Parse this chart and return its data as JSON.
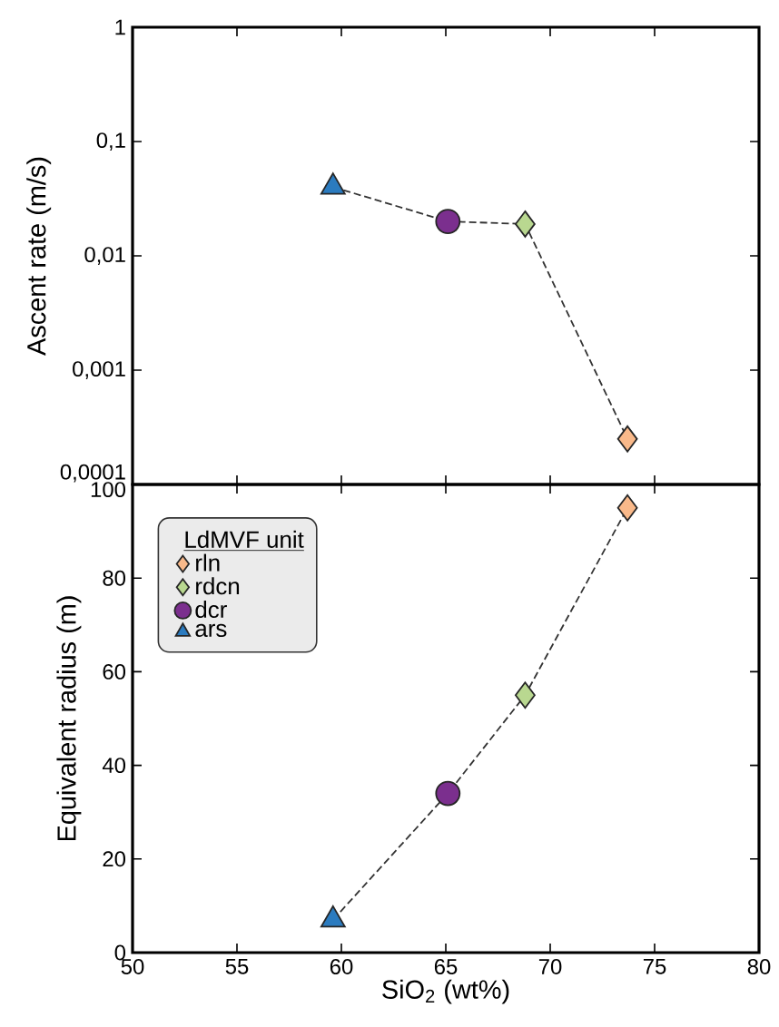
{
  "chart_data": [
    {
      "type": "scatter",
      "ylabel": "Ascent rate (m/s)",
      "log": "y",
      "tick_labels": "y",
      "legend": false,
      "xlim": [
        50,
        80
      ],
      "xticks": [
        50,
        55,
        60,
        65,
        70,
        75,
        80
      ],
      "ylim": [
        0.0001,
        1
      ],
      "yticks": [
        {
          "value": 0.0001,
          "label": "0,0001"
        },
        {
          "value": 0.001,
          "label": "0,001"
        },
        {
          "value": 0.01,
          "label": "0,01"
        },
        {
          "value": 0.1,
          "label": "0,1"
        },
        1
      ],
      "series": [
        {
          "type": "line",
          "line_style": "dashed",
          "color": "#333333",
          "x": [
            59.6,
            65.1,
            68.8,
            73.7
          ],
          "values": [
            0.04,
            0.02,
            0.019,
            0.00025
          ]
        },
        {
          "marker": "diamond",
          "color": "#f9b98a",
          "x": [
            73.7
          ],
          "values": [
            0.00025
          ]
        },
        {
          "marker": "diamond",
          "color": "#b9d890",
          "x": [
            68.8
          ],
          "values": [
            0.019
          ]
        },
        {
          "marker": "circle",
          "color": "#7b2f8e",
          "x": [
            65.1
          ],
          "values": [
            0.02
          ]
        },
        {
          "marker": "triangle",
          "color": "#2b7bbf",
          "x": [
            59.6
          ],
          "values": [
            0.04
          ]
        }
      ]
    },
    {
      "type": "scatter",
      "xlabel": "SiO$_{2}$ (wt%)",
      "ylabel": "Equivalent radius (m)",
      "legend": "top left",
      "legend_title": "LdMVF unit",
      "xlim": [
        50,
        80
      ],
      "xticks": [
        50,
        55,
        60,
        65,
        70,
        75,
        80
      ],
      "ylim": [
        0,
        100
      ],
      "yticks": [
        0,
        20,
        40,
        60,
        80,
        100
      ],
      "series": [
        {
          "type": "line",
          "line_style": "dashed",
          "color": "#333333",
          "x": [
            59.6,
            65.1,
            68.8,
            73.7
          ],
          "values": [
            7,
            34,
            55,
            95
          ]
        },
        {
          "name": "rln",
          "marker": "diamond",
          "color": "#f9b98a",
          "x": [
            73.7
          ],
          "values": [
            95
          ]
        },
        {
          "name": "rdcn",
          "marker": "diamond",
          "color": "#b9d890",
          "x": [
            68.8
          ],
          "values": [
            55
          ]
        },
        {
          "name": "dcr",
          "marker": "circle",
          "color": "#7b2f8e",
          "x": [
            65.1
          ],
          "values": [
            34
          ]
        },
        {
          "name": "ars",
          "marker": "triangle",
          "color": "#2b7bbf",
          "x": [
            59.6
          ],
          "values": [
            7
          ]
        }
      ]
    }
  ]
}
